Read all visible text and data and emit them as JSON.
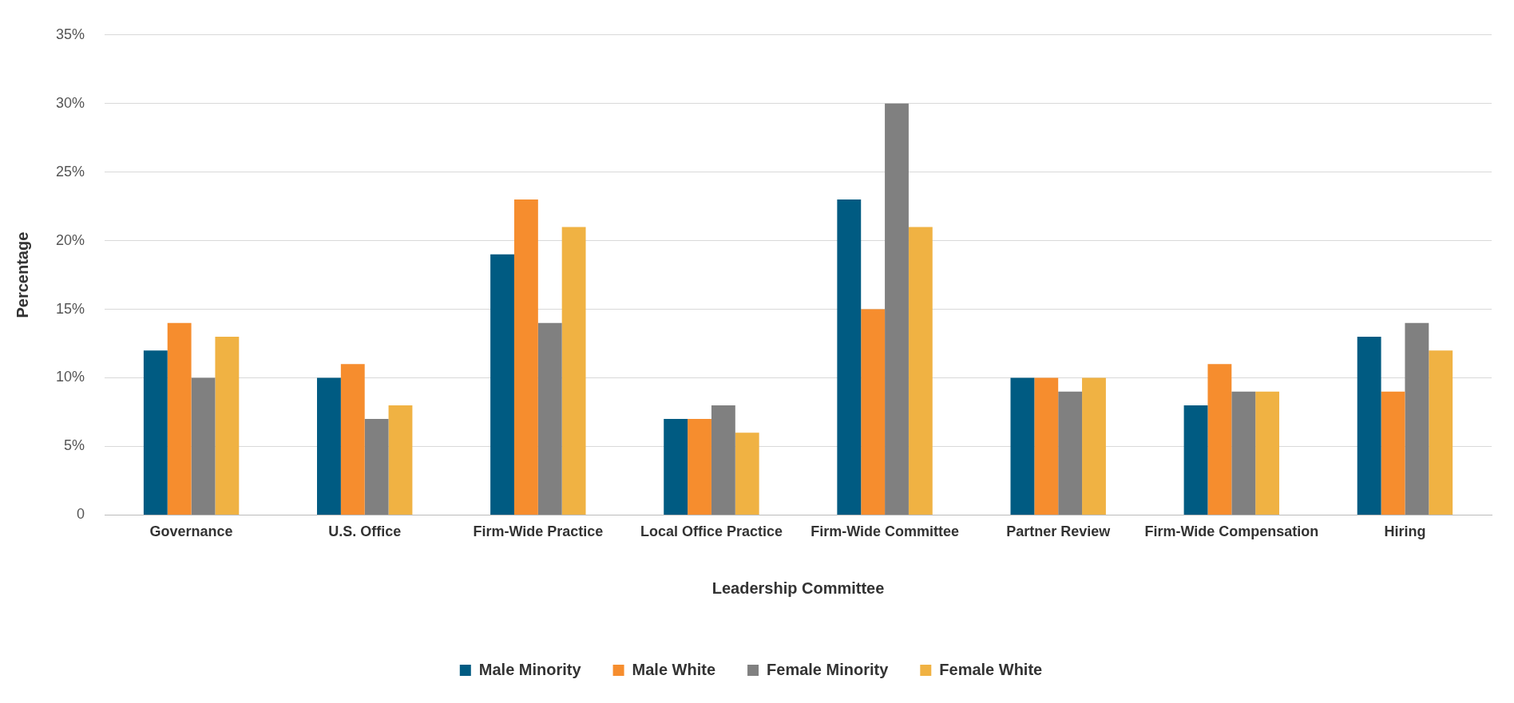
{
  "chart_data": {
    "type": "bar",
    "xlabel": "Leadership Committee",
    "ylabel": "Percentage",
    "categories": [
      "Governance",
      "U.S. Office",
      "Firm-Wide Practice",
      "Local Office Practice",
      "Firm-Wide Committee",
      "Partner Review",
      "Firm-Wide Compensation",
      "Hiring"
    ],
    "series": [
      {
        "name": "Male Minority",
        "color": "#005b82",
        "values": [
          12,
          10,
          19,
          7,
          23,
          10,
          8,
          13
        ]
      },
      {
        "name": "Male White",
        "color": "#f68d2e",
        "values": [
          14,
          11,
          23,
          7,
          15,
          10,
          11,
          9
        ]
      },
      {
        "name": "Female Minority",
        "color": "#808080",
        "values": [
          10,
          7,
          14,
          8,
          30,
          9,
          9,
          14
        ]
      },
      {
        "name": "Female White",
        "color": "#f0b243",
        "values": [
          13,
          8,
          21,
          6,
          21,
          10,
          9,
          12
        ]
      }
    ],
    "ylim": [
      0,
      35
    ],
    "yticks": [
      0,
      {
        "value": 5,
        "label": "5%"
      },
      {
        "value": 10,
        "label": "10%"
      },
      {
        "value": 15,
        "label": "15%"
      },
      {
        "value": 20,
        "label": "20%"
      },
      {
        "value": 25,
        "label": "25%"
      },
      {
        "value": 30,
        "label": "30%"
      },
      {
        "value": 35,
        "label": "35%"
      }
    ],
    "grid": "y",
    "legend": "bottom"
  }
}
